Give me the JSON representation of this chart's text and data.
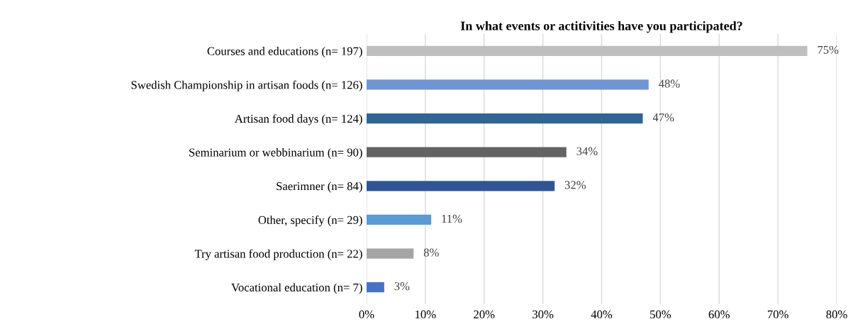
{
  "chart_data": {
    "type": "bar",
    "orientation": "horizontal",
    "title": "In what events or actitivities have you participated?",
    "categories": [
      "Courses and educations (n= 197)",
      "Swedish Championship in artisan foods (n= 126)",
      "Artisan food days (n= 124)",
      "Seminarium or webbinarium (n= 90)",
      "Saerimner (n= 84)",
      "Other, specify (n= 29)",
      "Try artisan food production (n= 22)",
      "Vocational education (n= 7)"
    ],
    "values": [
      75,
      48,
      47,
      34,
      32,
      11,
      8,
      3
    ],
    "value_labels": [
      "75%",
      "48%",
      "47%",
      "34%",
      "32%",
      "11%",
      "8%",
      "3%"
    ],
    "colors": [
      "#bfbfbf",
      "#6f96d4",
      "#2e6496",
      "#636363",
      "#2f5597",
      "#5b9bd5",
      "#a5a5a5",
      "#4472c4"
    ],
    "xlim": [
      0,
      80
    ],
    "xticks": [
      {
        "value": 0,
        "label": "0%"
      },
      {
        "value": 10,
        "label": "10%"
      },
      {
        "value": 20,
        "label": "20%"
      },
      {
        "value": 30,
        "label": "30%"
      },
      {
        "value": 40,
        "label": "40%"
      },
      {
        "value": 50,
        "label": "50%"
      },
      {
        "value": 60,
        "label": "60%"
      },
      {
        "value": 70,
        "label": "70%"
      },
      {
        "value": 80,
        "label": "80%"
      }
    ],
    "grid": "x",
    "legend": false
  }
}
